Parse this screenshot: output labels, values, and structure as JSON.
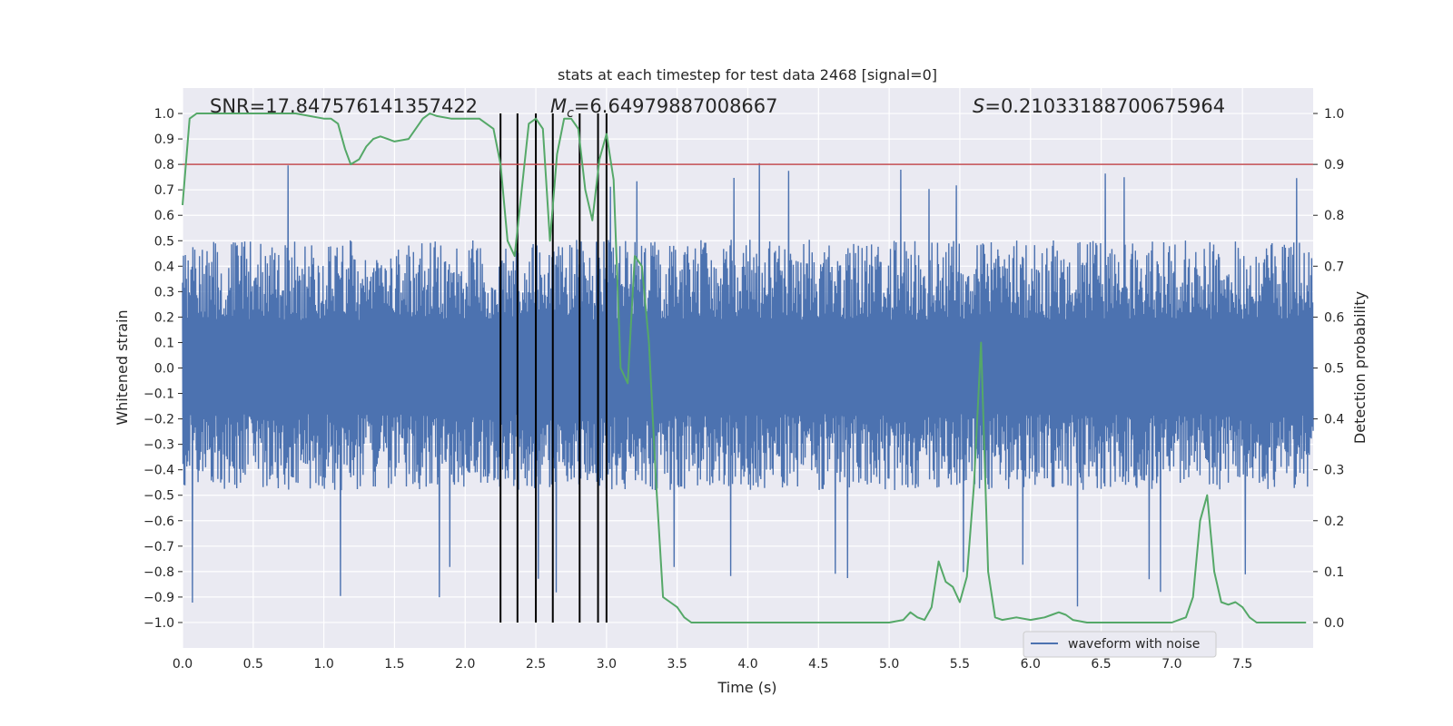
{
  "chart_data": {
    "type": "line",
    "title": "stats at each timestep for test data 2468 [signal=0]",
    "xlabel": "Time (s)",
    "ylabel": "Whitened strain",
    "y2label": "Detection probability",
    "xlim": [
      0.0,
      8.0
    ],
    "ylim": [
      -1.1,
      1.1
    ],
    "y2lim": [
      -0.05,
      1.05
    ],
    "xticks": [
      "0.0",
      "0.5",
      "1.0",
      "1.5",
      "2.0",
      "2.5",
      "3.0",
      "3.5",
      "4.0",
      "4.5",
      "5.0",
      "5.5",
      "6.0",
      "6.5",
      "7.0",
      "7.5"
    ],
    "yticks": [
      "1.0",
      "0.9",
      "0.8",
      "0.7",
      "0.6",
      "0.5",
      "0.4",
      "0.3",
      "0.2",
      "0.1",
      "0.0",
      "−0.1",
      "−0.2",
      "−0.3",
      "−0.4",
      "−0.5",
      "−0.6",
      "−0.7",
      "−0.8",
      "−0.9",
      "−1.0"
    ],
    "y2ticks": [
      "1.0",
      "0.9",
      "0.8",
      "0.7",
      "0.6",
      "0.5",
      "0.4",
      "0.3",
      "0.2",
      "0.1",
      "0.0"
    ],
    "annotations": {
      "snr": "SNR=17.847576141357422",
      "mc_symbol": "M",
      "mc_sub": "c",
      "mc_value": "=6.64979887008667",
      "s_symbol": "S",
      "s_value": "=0.21033188700675964"
    },
    "legend": {
      "label": "waveform with noise",
      "location": "lower-right"
    },
    "threshold": {
      "value": 0.9,
      "axis": "right",
      "color": "#c44e52"
    },
    "vertical_lines": [
      2.25,
      2.37,
      2.5,
      2.62,
      2.81,
      2.94,
      3.0
    ],
    "series": [
      {
        "name": "waveform with noise",
        "axis": "left",
        "color": "#4c72b0",
        "envelope": {
          "typical_upper": 0.42,
          "typical_lower": -0.4,
          "max_peak": 0.82,
          "min_peak": -0.95
        }
      },
      {
        "name": "detection probability",
        "axis": "right",
        "color": "#55a868",
        "x": [
          0.0,
          0.05,
          0.1,
          0.2,
          0.3,
          0.4,
          0.5,
          0.6,
          0.7,
          0.8,
          0.9,
          1.0,
          1.05,
          1.1,
          1.15,
          1.19,
          1.25,
          1.3,
          1.35,
          1.4,
          1.45,
          1.5,
          1.6,
          1.7,
          1.75,
          1.8,
          1.9,
          2.0,
          2.1,
          2.2,
          2.25,
          2.3,
          2.35,
          2.4,
          2.45,
          2.5,
          2.55,
          2.6,
          2.65,
          2.7,
          2.75,
          2.8,
          2.85,
          2.9,
          2.95,
          3.0,
          3.05,
          3.1,
          3.15,
          3.2,
          3.25,
          3.3,
          3.35,
          3.4,
          3.45,
          3.5,
          3.55,
          3.6,
          3.65,
          3.7,
          3.8,
          4.0,
          4.2,
          4.4,
          4.6,
          4.8,
          5.0,
          5.1,
          5.15,
          5.2,
          5.25,
          5.3,
          5.35,
          5.4,
          5.45,
          5.5,
          5.55,
          5.6,
          5.65,
          5.7,
          5.75,
          5.8,
          5.9,
          6.0,
          6.1,
          6.15,
          6.2,
          6.25,
          6.3,
          6.4,
          6.5,
          6.6,
          6.7,
          6.8,
          6.9,
          7.0,
          7.05,
          7.1,
          7.15,
          7.2,
          7.25,
          7.3,
          7.35,
          7.4,
          7.45,
          7.5,
          7.55,
          7.6,
          7.7,
          7.8,
          7.95
        ],
        "y": [
          0.82,
          0.99,
          1.0,
          1.0,
          1.0,
          1.0,
          1.0,
          1.0,
          1.0,
          1.0,
          0.995,
          0.99,
          0.99,
          0.98,
          0.93,
          0.9,
          0.91,
          0.935,
          0.95,
          0.955,
          0.95,
          0.945,
          0.95,
          0.99,
          1.0,
          0.995,
          0.99,
          0.99,
          0.99,
          0.97,
          0.9,
          0.75,
          0.72,
          0.85,
          0.98,
          0.99,
          0.97,
          0.75,
          0.92,
          0.99,
          0.99,
          0.97,
          0.85,
          0.79,
          0.91,
          0.96,
          0.87,
          0.5,
          0.47,
          0.72,
          0.7,
          0.55,
          0.28,
          0.05,
          0.04,
          0.03,
          0.01,
          0.0,
          0.0,
          0.0,
          0.0,
          0.0,
          0.0,
          0.0,
          0.0,
          0.0,
          0.0,
          0.005,
          0.02,
          0.01,
          0.005,
          0.03,
          0.12,
          0.08,
          0.07,
          0.04,
          0.09,
          0.27,
          0.55,
          0.1,
          0.01,
          0.005,
          0.01,
          0.005,
          0.01,
          0.015,
          0.02,
          0.015,
          0.005,
          0.0,
          0.0,
          0.0,
          0.0,
          0.0,
          0.0,
          0.0,
          0.005,
          0.01,
          0.05,
          0.2,
          0.25,
          0.1,
          0.04,
          0.035,
          0.04,
          0.03,
          0.01,
          0.0,
          0.0,
          0.0,
          0.0
        ]
      }
    ]
  }
}
